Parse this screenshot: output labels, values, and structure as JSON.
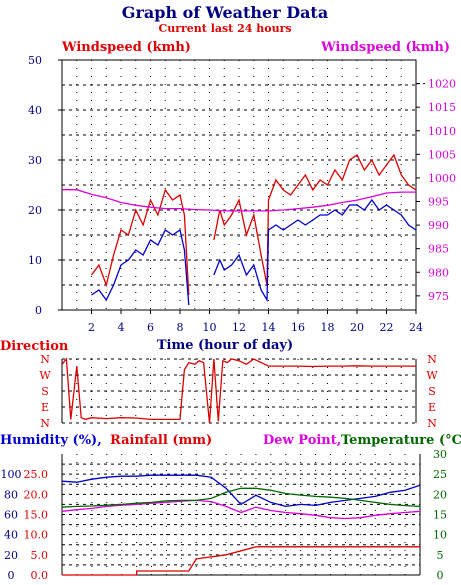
{
  "title": "Graph of Weather Data",
  "subtitle": "Current last 24 hours",
  "colors": {
    "red": "#dd0000",
    "blue": "#0000cc",
    "magenta": "#dd00dd",
    "green": "#006600",
    "navy": "#000080",
    "title": "#000080",
    "grid": "#000000"
  },
  "chart_data": [
    {
      "type": "line",
      "panel": "wind",
      "left_label": "Windspeed (kmh)",
      "right_label": "Windspeed (kmh)",
      "xlabel": "Time (hour of day)",
      "x_ticks": [
        "2",
        "4",
        "6",
        "8",
        "10",
        "12",
        "14",
        "16",
        "18",
        "20",
        "22",
        "24"
      ],
      "xlim": [
        0,
        24
      ],
      "left_axis": {
        "ylim": [
          0,
          50
        ],
        "ticks": [
          "0",
          "10",
          "20",
          "30",
          "40",
          "50"
        ]
      },
      "right_axis": {
        "ylim": [
          972,
          1025
        ],
        "ticks": [
          "975",
          "980",
          "985",
          "990",
          "995",
          "1000",
          "1005",
          "1010",
          "1015",
          "1020"
        ]
      },
      "grid": true,
      "series": [
        {
          "color": "red",
          "axis": "left",
          "x": [
            0,
            2,
            2.5,
            3,
            3.5,
            4,
            4.5,
            5,
            5.5,
            6,
            6.5,
            7,
            7.5,
            8,
            8.3,
            8.6,
            9,
            10,
            10.3,
            10.7,
            11,
            11.5,
            12,
            12.5,
            13,
            13.5,
            13.9,
            14,
            14.5,
            15,
            15.5,
            16,
            16.5,
            17,
            17.5,
            18,
            18.5,
            19,
            19.5,
            20,
            20.5,
            21,
            21.5,
            22,
            22.5,
            23,
            23.5,
            24
          ],
          "values": [
            null,
            7,
            9,
            5,
            11,
            16,
            15,
            20,
            17,
            22,
            19,
            24,
            22,
            23,
            19,
            3,
            null,
            null,
            14,
            20,
            17,
            19,
            22,
            15,
            19,
            11,
            5,
            22,
            26,
            24,
            23,
            25,
            27,
            24,
            26,
            25,
            28,
            26,
            30,
            31,
            28,
            30,
            27,
            29,
            31,
            27,
            25,
            24
          ]
        },
        {
          "color": "blue",
          "axis": "left",
          "x": [
            0,
            2,
            2.5,
            3,
            3.5,
            4,
            4.5,
            5,
            5.5,
            6,
            6.5,
            7,
            7.5,
            8,
            8.3,
            8.6,
            9,
            10,
            10.3,
            10.7,
            11,
            11.5,
            12,
            12.5,
            13,
            13.5,
            13.9,
            14,
            14.5,
            15,
            15.5,
            16,
            16.5,
            17,
            17.5,
            18,
            18.5,
            19,
            19.5,
            20,
            20.5,
            21,
            21.5,
            22,
            22.5,
            23,
            23.5,
            24
          ],
          "values": [
            null,
            3,
            4,
            2,
            5,
            9,
            10,
            12,
            11,
            14,
            13,
            16,
            15,
            16,
            12,
            1,
            null,
            null,
            7,
            10,
            8,
            9,
            11,
            7,
            9,
            4,
            2,
            16,
            17,
            16,
            17,
            18,
            17,
            18,
            19,
            19,
            20,
            19,
            21,
            21,
            20,
            22,
            20,
            21,
            20,
            19,
            17,
            16
          ]
        },
        {
          "color": "magenta",
          "axis": "right",
          "x": [
            0,
            1,
            2,
            3,
            4,
            5,
            6,
            7,
            8,
            9,
            10,
            11,
            12,
            13,
            14,
            15,
            16,
            17,
            18,
            19,
            20,
            21,
            22,
            23,
            24
          ],
          "values": [
            997.5,
            997.5,
            996.5,
            995.8,
            994.8,
            994.2,
            993.8,
            993.5,
            993.5,
            993.3,
            993.2,
            993,
            993,
            993,
            993,
            993.2,
            993.5,
            993.8,
            994.2,
            994.8,
            995.3,
            996,
            996.8,
            997,
            997
          ]
        }
      ]
    },
    {
      "type": "line",
      "panel": "direction",
      "left_label": "Direction",
      "y_ticks": [
        "N",
        "W",
        "S",
        "E",
        "N"
      ],
      "ylim": [
        0,
        360
      ],
      "xlim": [
        0,
        24
      ],
      "grid": true,
      "series": [
        {
          "color": "red",
          "x": [
            0,
            0.3,
            0.6,
            1,
            1.3,
            1.6,
            2,
            3,
            4,
            5,
            6,
            7,
            8,
            8.3,
            8.6,
            9,
            9.3,
            9.6,
            10,
            10.3,
            10.6,
            10.9,
            11.2,
            11.5,
            12,
            12.5,
            13,
            13.5,
            14,
            15,
            16,
            17,
            18,
            19,
            20,
            21,
            22,
            23,
            24
          ],
          "values": [
            330,
            360,
            20,
            320,
            30,
            20,
            30,
            25,
            30,
            28,
            20,
            20,
            20,
            300,
            340,
            330,
            350,
            340,
            0,
            360,
            10,
            350,
            340,
            360,
            350,
            330,
            360,
            340,
            320,
            320,
            320,
            318,
            320,
            320,
            322,
            320,
            320,
            320,
            320
          ]
        }
      ]
    },
    {
      "type": "line",
      "panel": "humidity",
      "labels": [
        "Humidity (%),",
        "Rainfall (mm)",
        "Dew Point,",
        "Temperature (°C)"
      ],
      "humidity_axis": {
        "ylim": [
          0,
          120
        ],
        "ticks": [
          "0",
          "20",
          "40",
          "60",
          "80",
          "100"
        ]
      },
      "rain_axis": {
        "ylim": [
          0,
          30
        ],
        "ticks": [
          "0.0",
          "5.0",
          "10.0",
          "15.0",
          "20.0",
          "25.0"
        ]
      },
      "temp_axis": {
        "ylim": [
          0,
          30
        ],
        "ticks": [
          "0",
          "5",
          "10",
          "15",
          "20",
          "25",
          "30"
        ]
      },
      "xlim": [
        0,
        24
      ],
      "grid": true,
      "series": [
        {
          "color": "blue",
          "axis": "humidity",
          "x": [
            0,
            1,
            2,
            3,
            4,
            5,
            6,
            7,
            8,
            9,
            10,
            11,
            12,
            13,
            14,
            15,
            16,
            17,
            18,
            19,
            20,
            21,
            22,
            23,
            24
          ],
          "values": [
            93,
            92,
            95,
            97,
            98,
            98,
            99,
            99,
            99,
            99,
            97,
            86,
            70,
            79,
            72,
            68,
            70,
            69,
            72,
            74,
            76,
            78,
            82,
            84,
            89
          ]
        },
        {
          "color": "red",
          "axis": "rain",
          "x": [
            0,
            0.1,
            5,
            5.01,
            8.5,
            9,
            9.01,
            11,
            11.01,
            13,
            13.01,
            24
          ],
          "values": [
            0,
            0,
            0,
            1,
            1,
            4,
            4,
            5,
            5,
            7,
            7,
            7
          ]
        },
        {
          "color": "magenta",
          "axis": "temp",
          "x": [
            0,
            1,
            2,
            3,
            4,
            5,
            6,
            7,
            8,
            9,
            10,
            11,
            12,
            13,
            14,
            15,
            16,
            17,
            18,
            19,
            20,
            21,
            22,
            23,
            24
          ],
          "values": [
            15.8,
            16.2,
            16.5,
            17,
            17.3,
            17.5,
            17.8,
            18,
            18.3,
            18.5,
            18.2,
            17,
            15.5,
            16.8,
            16,
            15.5,
            15.2,
            14.8,
            14.2,
            14,
            14.2,
            14.8,
            15.2,
            15.5,
            15.8
          ]
        },
        {
          "color": "green",
          "axis": "temp",
          "x": [
            0,
            1,
            2,
            3,
            4,
            5,
            6,
            7,
            8,
            9,
            10,
            11,
            12,
            13,
            14,
            15,
            16,
            17,
            18,
            19,
            20,
            21,
            22,
            23,
            24
          ],
          "values": [
            16.8,
            17,
            17.1,
            17.3,
            17.5,
            17.8,
            18,
            18.4,
            18.5,
            18.5,
            19,
            20.5,
            21.5,
            21.5,
            21,
            20.2,
            19.8,
            19.5,
            19.3,
            19,
            18.5,
            18,
            17.5,
            17.2,
            17
          ]
        }
      ]
    }
  ]
}
